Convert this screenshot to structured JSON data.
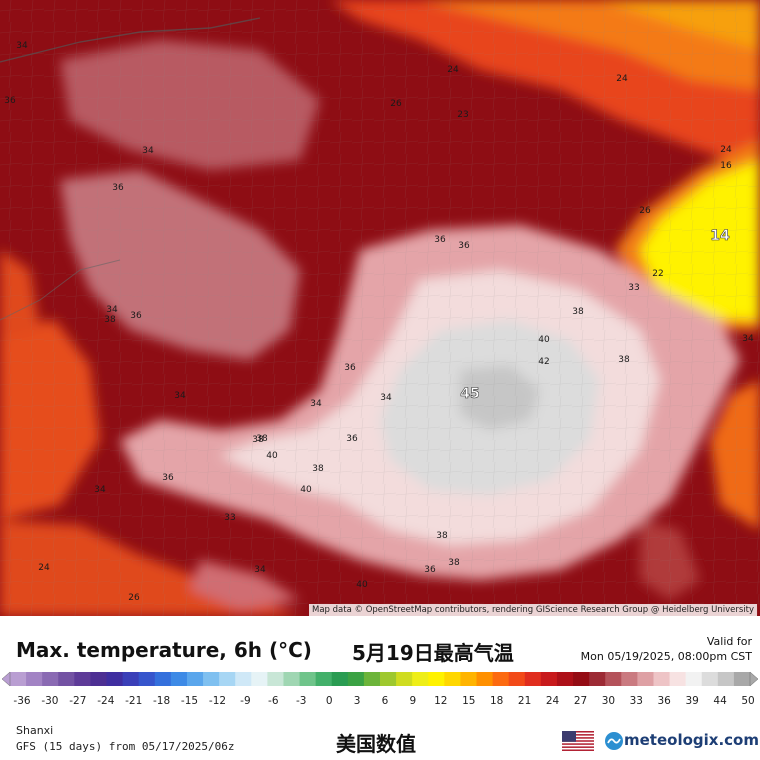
{
  "map": {
    "attribution": "Map data © OpenStreetMap contributors, rendering GIScience Research Group @ Heidelberg University",
    "region_labels": [
      "34",
      "36",
      "34",
      "36",
      "34",
      "34",
      "34",
      "36",
      "24",
      "26",
      "24",
      "23",
      "24",
      "16",
      "26",
      "36",
      "36",
      "14",
      "22",
      "33",
      "38",
      "40",
      "42",
      "38",
      "34",
      "45",
      "36",
      "34",
      "34",
      "38",
      "36",
      "40",
      "38",
      "40",
      "38",
      "36",
      "38",
      "40",
      "38",
      "36",
      "38",
      "24",
      "34",
      "26",
      "33"
    ]
  },
  "title": {
    "main": "Max. temperature, 6h (°C)",
    "chinese": "5月19日最高气温"
  },
  "valid": {
    "label": "Valid for",
    "time": "Mon 05/19/2025, 08:00pm CST"
  },
  "legend": {
    "ticks": [
      "-36",
      "-30",
      "-27",
      "-24",
      "-21",
      "-18",
      "-15",
      "-12",
      "-9",
      "-6",
      "-3",
      "0",
      "3",
      "6",
      "9",
      "12",
      "15",
      "18",
      "21",
      "24",
      "27",
      "30",
      "33",
      "36",
      "39",
      "44",
      "50"
    ],
    "colors": [
      "#b99ed2",
      "#a283c4",
      "#8a6ab3",
      "#7352a3",
      "#5e3b98",
      "#4d2f93",
      "#3f2ea0",
      "#3a3fb8",
      "#3655cc",
      "#3470dc",
      "#3d8ae6",
      "#5aa6ec",
      "#7fc0f0",
      "#a7d6f4",
      "#cfe8f7",
      "#e6f3f6",
      "#c8e6d6",
      "#9fd6b2",
      "#6fc48a",
      "#43b06a",
      "#2a9c52",
      "#3ba244",
      "#6cb43a",
      "#9ec82e",
      "#cfdc20",
      "#eeee18",
      "#fff200",
      "#ffd700",
      "#ffb400",
      "#ff9000",
      "#fc6a10",
      "#f24a18",
      "#e02d1e",
      "#c81a1c",
      "#ad1018",
      "#940c14",
      "#9c2a34",
      "#b4525a",
      "#ca7a80",
      "#dea0a4",
      "#eec4c6",
      "#f7e2e2",
      "#f2f2f2",
      "#dcdcdc",
      "#c6c6c6",
      "#a8a8a8"
    ]
  },
  "footer": {
    "region": "Shanxi",
    "model": "GFS (15 days) from 05/17/2025/06z",
    "chinese": "美国数值",
    "brand": "meteologix.com"
  }
}
